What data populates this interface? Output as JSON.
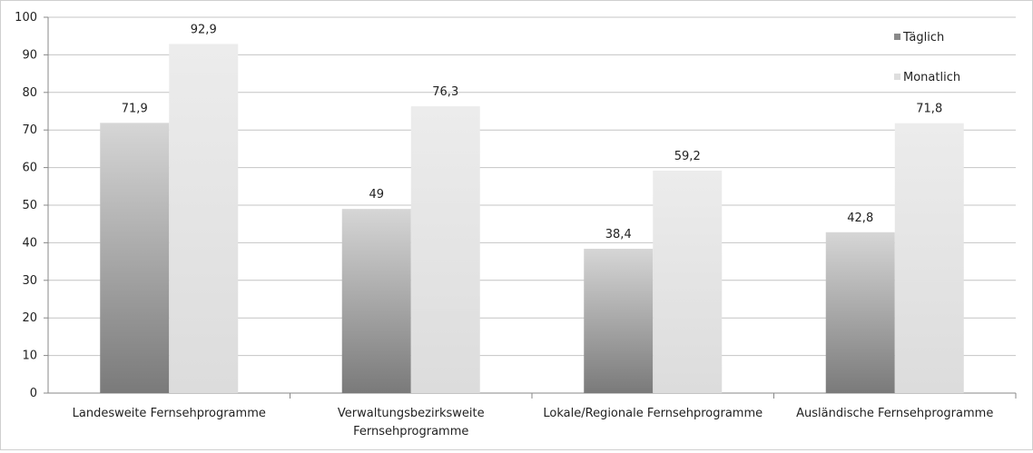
{
  "chart_data": {
    "type": "bar",
    "categories": [
      "Landesweite Fernsehprogramme",
      "Verwaltungsbezirksweite Fernsehprogramme",
      "Lokale/Regionale Fernsehprogramme",
      "Ausländische Fernsehprogramme"
    ],
    "category_lines": [
      [
        "Landesweite Fernsehprogramme"
      ],
      [
        "Verwaltungsbezirksweite",
        "Fernsehprogramme"
      ],
      [
        "Lokale/Regionale Fernsehprogramme"
      ],
      [
        "Ausländische Fernsehprogramme"
      ]
    ],
    "series": [
      {
        "name": "Täglich",
        "values": [
          71.9,
          49,
          38.4,
          42.8
        ],
        "labels": [
          "71,9",
          "49",
          "38,4",
          "42,8"
        ],
        "color": "#8a8a8a"
      },
      {
        "name": "Monatlich",
        "values": [
          92.9,
          76.3,
          59.2,
          71.8
        ],
        "labels": [
          "92,9",
          "76,3",
          "59,2",
          "71,8"
        ],
        "color": "#e2e2e2"
      }
    ],
    "y_ticks": [
      0,
      10,
      20,
      30,
      40,
      50,
      60,
      70,
      80,
      90,
      100
    ],
    "ylim": [
      0,
      100
    ],
    "grid": true,
    "legend_position": "top-right",
    "title": "",
    "xlabel": "",
    "ylabel": ""
  }
}
